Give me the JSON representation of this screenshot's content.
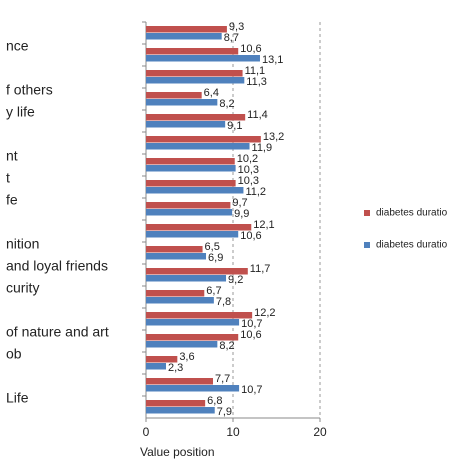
{
  "chart_data": {
    "type": "hbar",
    "xlabel": "Value position",
    "categories": [
      null,
      "nce",
      null,
      "f others",
      "y life",
      null,
      "nt",
      "t",
      "fe",
      null,
      "nition",
      "and loyal friends",
      "curity",
      null,
      "of nature and art",
      "ob",
      null,
      "Life"
    ],
    "series": [
      {
        "name": "diabetes duratio",
        "color": "#c0504d",
        "values": [
          9.3,
          10.6,
          11.1,
          6.4,
          11.4,
          13.2,
          10.2,
          10.3,
          9.7,
          12.1,
          6.5,
          11.7,
          6.7,
          12.2,
          10.6,
          3.6,
          7.7,
          6.8
        ],
        "value_labels": [
          "9,3",
          "10,6",
          "11,1",
          "6,4",
          "11,4",
          "13,2",
          "10,2",
          "10,3",
          "9,7",
          "12,1",
          "6,5",
          "11,7",
          "6,7",
          "12,2",
          "10,6",
          "3,6",
          "7,7",
          "6,8"
        ]
      },
      {
        "name": "diabetes duratio",
        "color": "#4f81bd",
        "values": [
          8.7,
          13.1,
          11.3,
          8.2,
          9.1,
          11.9,
          10.3,
          11.2,
          9.9,
          10.6,
          6.9,
          9.2,
          7.8,
          10.7,
          8.2,
          2.3,
          10.7,
          7.9
        ],
        "value_labels": [
          "8,7",
          "13,1",
          "11,3",
          "8,2",
          "9,1",
          "11,9",
          "10,3",
          "11,2",
          "9,9",
          "10,6",
          "6,9",
          "9,2",
          "7,8",
          "10,7",
          "8,2",
          "2,3",
          "10,7",
          "7,9"
        ]
      }
    ],
    "xlim": [
      0,
      20
    ],
    "xticks": [
      0,
      10,
      20
    ],
    "grid": true,
    "legend": "right"
  }
}
